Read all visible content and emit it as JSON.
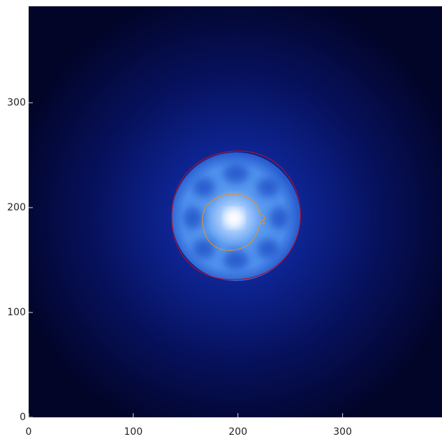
{
  "chart_data": {
    "type": "image",
    "xlim": [
      0,
      395
    ],
    "ylim": [
      0,
      392
    ],
    "xticks": [
      0,
      100,
      200,
      300
    ],
    "yticks": [
      0,
      100,
      200,
      300
    ]
  }
}
